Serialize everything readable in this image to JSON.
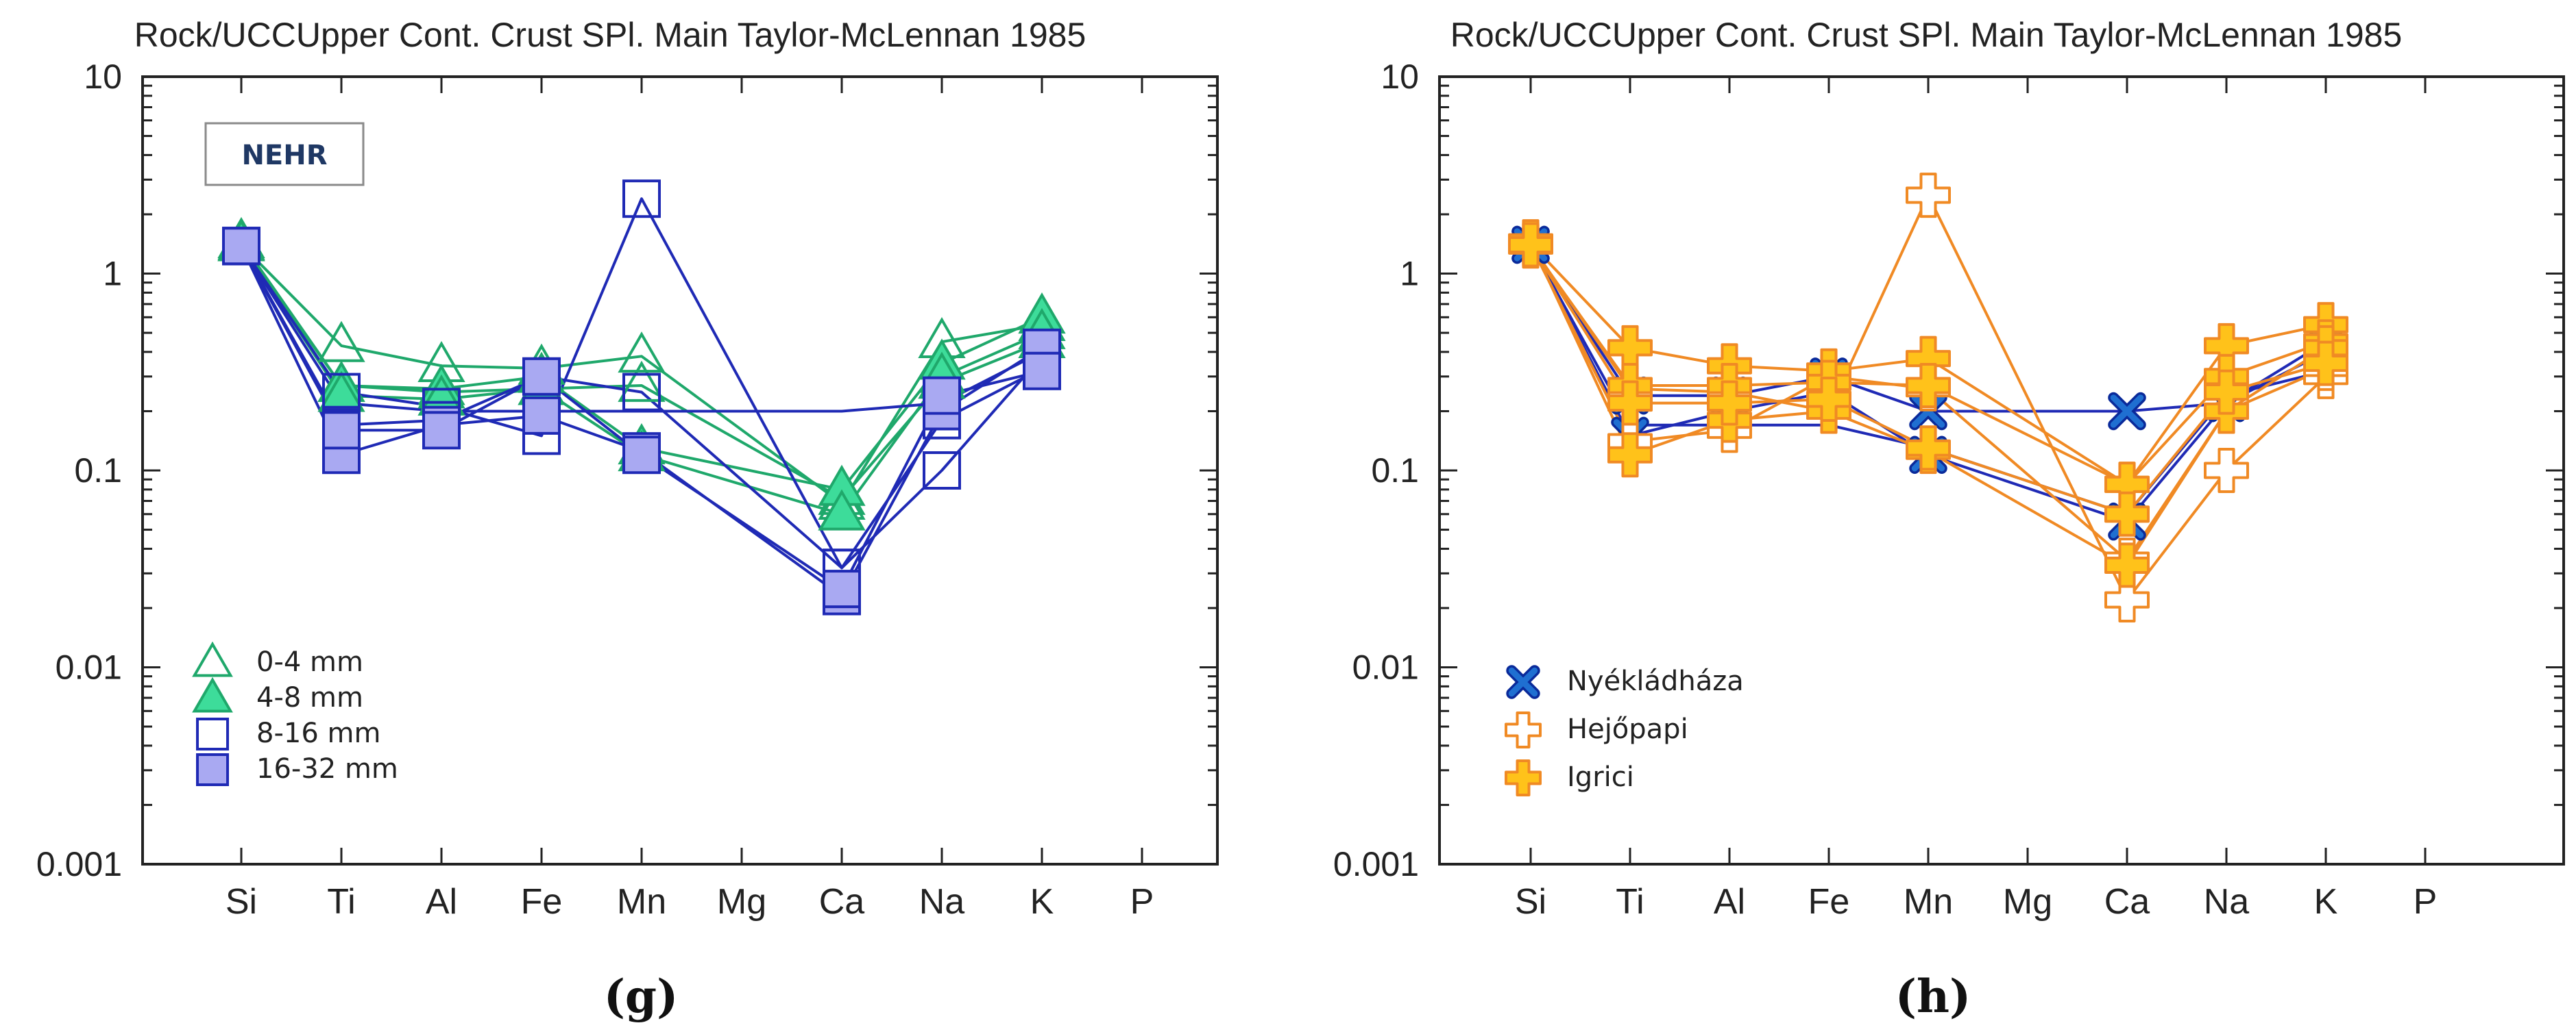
{
  "chart_data": [
    {
      "type": "line",
      "panel_label": "(g)",
      "title": "Rock/UCCUpper Cont. Crust SPl. Main Taylor-McLennan 1985",
      "annotation": "NEHR",
      "categories": [
        "Si",
        "Ti",
        "Al",
        "Fe",
        "Mn",
        "Mg",
        "Ca",
        "Na",
        "K",
        "P"
      ],
      "y_scale": "log",
      "ylim": [
        0.001,
        10
      ],
      "y_ticks": [
        "0.001",
        "0.01",
        "0.1",
        "1",
        "10"
      ],
      "legend_position": "bottom-left",
      "series": [
        {
          "name": "0-4 mm",
          "marker": "triangle-open",
          "color": "#1fa86b",
          "values": [
            1.4,
            0.43,
            0.34,
            0.33,
            0.38,
            null,
            0.068,
            0.45,
            0.55,
            null
          ]
        },
        {
          "values": [
            1.4,
            0.27,
            0.25,
            0.26,
            0.27,
            null,
            0.072,
            0.28,
            0.45,
            null
          ],
          "marker": "triangle-open",
          "color": "#1fa86b"
        },
        {
          "name": "4-8 mm",
          "marker": "triangle-filled",
          "color": "#1fa86b",
          "values": [
            1.45,
            0.27,
            0.26,
            0.3,
            0.13,
            null,
            0.08,
            0.35,
            0.6,
            null
          ]
        },
        {
          "values": [
            1.42,
            0.24,
            0.23,
            0.26,
            0.12,
            null,
            0.06,
            0.3,
            0.5,
            null
          ],
          "marker": "triangle-filled",
          "color": "#1fa86b"
        },
        {
          "name": "8-16 mm",
          "marker": "square-open",
          "color": "#1f2ab5",
          "values": [
            1.38,
            0.25,
            0.21,
            0.15,
            2.4,
            null,
            0.032,
            0.1,
            0.38,
            null
          ]
        },
        {
          "values": [
            1.38,
            0.17,
            0.18,
            0.3,
            0.25,
            null,
            0.032,
            0.18,
            0.33,
            null
          ],
          "marker": "square-open",
          "color": "#1f2ab5"
        },
        {
          "values": [
            1.38,
            0.22,
            0.2,
            0.2,
            0.2,
            null,
            0.2,
            0.22,
            0.4,
            null
          ],
          "marker": "none",
          "color": "#1f2ab5"
        },
        {
          "name": "16-32 mm",
          "marker": "square-filled",
          "color": "#1f2ab5",
          "values": [
            1.38,
            0.12,
            0.17,
            0.19,
            0.125,
            null,
            0.023,
            0.2,
            0.42,
            null
          ]
        },
        {
          "values": [
            1.38,
            0.16,
            0.16,
            0.3,
            0.12,
            null,
            0.025,
            0.24,
            0.32,
            null
          ],
          "marker": "square-filled",
          "color": "#1f2ab5"
        }
      ]
    },
    {
      "type": "line",
      "panel_label": "(h)",
      "title": "Rock/UCCUpper Cont. Crust SPl. Main Taylor-McLennan 1985",
      "categories": [
        "Si",
        "Ti",
        "Al",
        "Fe",
        "Mn",
        "Mg",
        "Ca",
        "Na",
        "K",
        "P"
      ],
      "y_scale": "log",
      "ylim": [
        0.001,
        10
      ],
      "y_ticks": [
        "0.001",
        "0.01",
        "0.1",
        "1",
        "10"
      ],
      "legend_position": "bottom-left",
      "series": [
        {
          "name": "Nyékládháza",
          "marker": "x",
          "color": "#1f6fd1",
          "line_color": "#1f2ab5",
          "values": [
            1.4,
            0.15,
            0.2,
            0.25,
            0.12,
            null,
            0.055,
            0.22,
            0.4,
            null
          ]
        },
        {
          "values": [
            1.4,
            0.24,
            0.24,
            0.3,
            0.2,
            null,
            0.2,
            0.22,
            0.45,
            null
          ],
          "marker": "x",
          "color": "#1f6fd1",
          "line_color": "#1f2ab5"
        },
        {
          "values": [
            1.4,
            0.17,
            0.17,
            0.17,
            0.13,
            null,
            0.06,
            0.24,
            0.32,
            null
          ],
          "marker": "none",
          "line_color": "#1f2ab5"
        },
        {
          "name": "Hejőpapi",
          "marker": "cross-open",
          "color": "#f08a24",
          "values": [
            1.4,
            0.26,
            0.25,
            0.2,
            2.5,
            null,
            0.022,
            0.1,
            0.3,
            null
          ]
        },
        {
          "values": [
            1.4,
            0.14,
            0.16,
            0.3,
            0.26,
            null,
            0.035,
            0.2,
            0.33,
            null
          ],
          "marker": "cross-open",
          "color": "#f08a24"
        },
        {
          "name": "Igrici",
          "marker": "cross-filled",
          "color": "#f08a24",
          "fill": "#ffc21a",
          "values": [
            1.42,
            0.42,
            0.34,
            0.32,
            0.37,
            null,
            0.085,
            0.43,
            0.55,
            null
          ]
        },
        {
          "values": [
            1.38,
            0.27,
            0.27,
            0.28,
            0.27,
            null,
            0.085,
            0.3,
            0.45,
            null
          ],
          "marker": "cross-filled",
          "color": "#f08a24",
          "fill": "#ffc21a"
        },
        {
          "values": [
            1.45,
            0.12,
            0.18,
            0.2,
            0.125,
            null,
            0.033,
            0.2,
            0.42,
            null
          ],
          "marker": "cross-filled",
          "color": "#f08a24",
          "fill": "#ffc21a"
        },
        {
          "values": [
            1.4,
            0.22,
            0.22,
            0.23,
            0.13,
            null,
            0.06,
            0.25,
            0.35,
            null
          ],
          "marker": "cross-filled",
          "color": "#f08a24",
          "fill": "#ffc21a"
        }
      ]
    }
  ]
}
